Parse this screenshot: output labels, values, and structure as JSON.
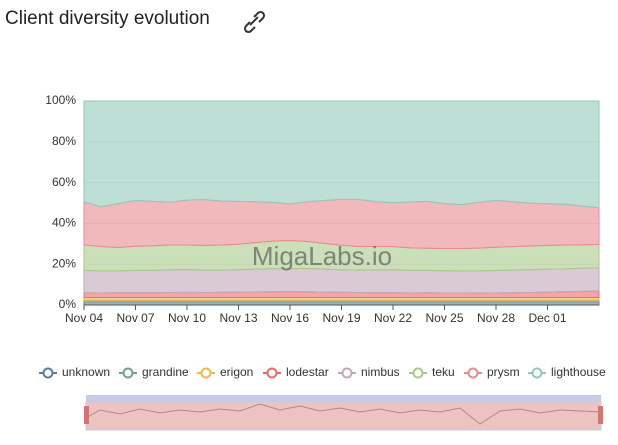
{
  "chart_data": {
    "type": "stacked_area_percent",
    "title": "Client diversity evolution",
    "watermark": "MigaLabs.io",
    "categories": [
      "Nov 04",
      null,
      null,
      "Nov 07",
      null,
      null,
      "Nov 10",
      null,
      null,
      "Nov 13",
      null,
      null,
      "Nov 16",
      null,
      null,
      "Nov 19",
      null,
      null,
      "Nov 22",
      null,
      null,
      "Nov 25",
      null,
      null,
      "Nov 28",
      null,
      null,
      "Dec 01",
      null,
      null,
      null
    ],
    "ylim": [
      0,
      100
    ],
    "yticks": [
      {
        "value": 0,
        "label": "0%"
      },
      {
        "value": 20,
        "label": "20%"
      },
      {
        "value": 40,
        "label": "40%"
      },
      {
        "value": 60,
        "label": "60%"
      },
      {
        "value": 80,
        "label": "80%"
      },
      {
        "value": 100,
        "label": "100%"
      }
    ],
    "grid": true,
    "legend": "bottom",
    "series": [
      {
        "name": "unknown",
        "color": "#5b7f9b",
        "values": [
          1.5,
          1.5,
          1.5,
          1.5,
          1.5,
          1.5,
          1.5,
          1.5,
          1.5,
          1.5,
          1.5,
          1.5,
          1.5,
          1.5,
          1.5,
          1.5,
          1.5,
          1.5,
          1.5,
          1.5,
          1.5,
          1.5,
          1.5,
          1.5,
          1.5,
          1.5,
          1.5,
          1.5,
          1.5,
          1.5,
          1.5
        ]
      },
      {
        "name": "grandine",
        "color": "#6f9e94",
        "values": [
          0.8,
          0.8,
          0.8,
          0.8,
          0.8,
          0.8,
          0.8,
          0.8,
          0.8,
          0.8,
          0.8,
          0.8,
          0.8,
          0.8,
          0.8,
          0.8,
          0.8,
          0.8,
          0.8,
          0.8,
          0.8,
          0.8,
          0.8,
          0.8,
          0.8,
          0.8,
          0.8,
          0.8,
          0.8,
          0.8,
          0.8
        ]
      },
      {
        "name": "erigon",
        "color": "#f2b84b",
        "values": [
          1.4,
          1.4,
          1.4,
          1.4,
          1.4,
          1.4,
          1.4,
          1.4,
          1.4,
          1.4,
          1.4,
          1.4,
          1.4,
          1.4,
          1.4,
          1.4,
          1.4,
          1.4,
          1.4,
          1.4,
          1.4,
          1.4,
          1.4,
          1.4,
          1.4,
          1.4,
          1.4,
          1.4,
          1.4,
          1.4,
          1.4
        ]
      },
      {
        "name": "lodestar",
        "color": "#ec6a6a",
        "values": [
          2.3,
          2.2,
          2.3,
          2.4,
          2.3,
          2.4,
          2.5,
          2.4,
          2.5,
          2.6,
          2.7,
          2.8,
          2.9,
          2.8,
          2.6,
          2.5,
          2.4,
          2.3,
          2.3,
          2.2,
          2.3,
          2.2,
          2.2,
          2.1,
          2.2,
          2.3,
          2.4,
          2.6,
          2.8,
          3.0,
          3.1
        ]
      },
      {
        "name": "nimbus",
        "color": "#c2a7b9",
        "values": [
          11.0,
          10.8,
          10.7,
          10.9,
          11.0,
          11.1,
          11.2,
          11.0,
          10.9,
          11.0,
          11.2,
          11.3,
          11.2,
          11.4,
          11.3,
          11.1,
          11.0,
          11.2,
          11.3,
          11.1,
          11.0,
          10.9,
          10.8,
          10.9,
          11.0,
          11.1,
          11.2,
          11.3,
          11.2,
          11.3,
          11.4
        ]
      },
      {
        "name": "teku",
        "color": "#a8c98b",
        "values": [
          12.5,
          12.0,
          11.5,
          11.8,
          12.0,
          12.2,
          12.0,
          12.1,
          12.3,
          12.5,
          13.0,
          13.5,
          13.8,
          13.2,
          12.6,
          12.0,
          11.6,
          11.5,
          11.3,
          11.0,
          10.8,
          10.9,
          11.0,
          11.2,
          11.4,
          11.5,
          11.6,
          11.6,
          11.7,
          11.5,
          11.5
        ]
      },
      {
        "name": "prysm",
        "color": "#e98a90",
        "values": [
          21.0,
          19.5,
          21.5,
          22.5,
          21.8,
          21.0,
          22.0,
          22.5,
          21.5,
          21.0,
          20.0,
          19.0,
          18.0,
          19.5,
          21.0,
          22.5,
          23.0,
          22.0,
          21.5,
          22.5,
          23.0,
          22.0,
          21.5,
          22.5,
          23.0,
          22.0,
          21.0,
          20.5,
          20.0,
          19.0,
          18.0
        ]
      },
      {
        "name": "lighthouse",
        "color": "#93c9bb",
        "values": [
          49.5,
          51.8,
          50.3,
          48.7,
          49.2,
          49.6,
          48.6,
          48.3,
          49.1,
          49.2,
          49.4,
          49.7,
          50.4,
          49.4,
          48.8,
          48.2,
          48.3,
          49.3,
          49.9,
          49.5,
          49.2,
          50.3,
          50.8,
          49.6,
          48.7,
          49.4,
          50.1,
          50.3,
          50.6,
          51.5,
          52.3
        ]
      }
    ]
  }
}
